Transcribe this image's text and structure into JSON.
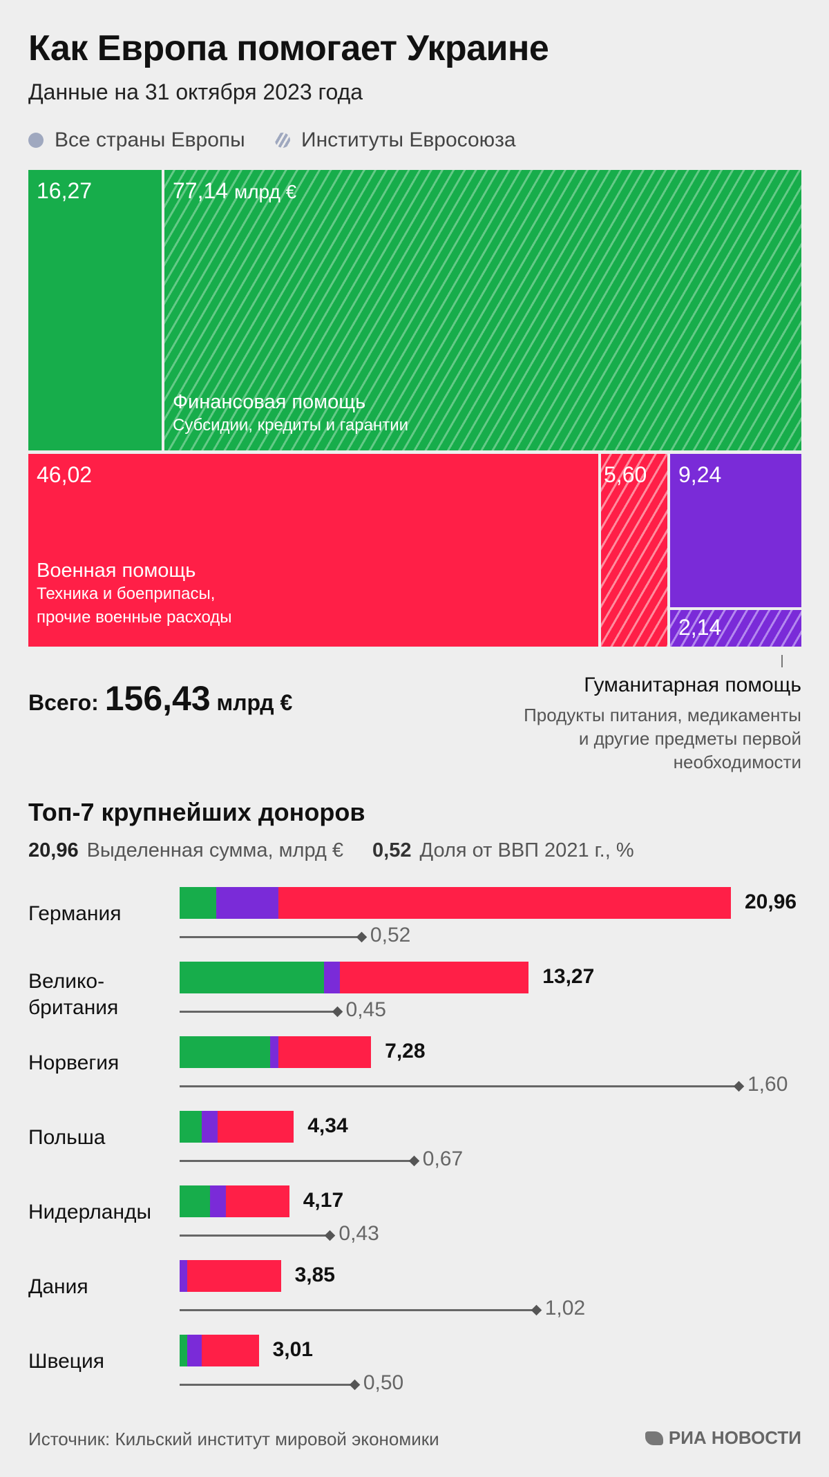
{
  "title": "Как Европа помогает Украине",
  "subtitle": "Данные на 31 октября 2023 года",
  "legend": {
    "countries": "Все страны Европы",
    "eu": "Институты Евросоюза"
  },
  "colors": {
    "financial": "#17ad4b",
    "military": "#ff1f47",
    "humanitarian": "#7a2bd8",
    "background": "#eeeeee"
  },
  "treemap": {
    "financial": {
      "countries": "16,27",
      "eu": "77,14",
      "unit": "млрд €",
      "title": "Финансовая помощь",
      "desc": "Субсидии, кредиты и гарантии"
    },
    "military": {
      "countries": "46,02",
      "eu": "5,60",
      "title": "Военная помощь",
      "desc_line1": "Техника и боеприпасы,",
      "desc_line2": "прочие военные расходы"
    },
    "humanitarian": {
      "countries": "9,24",
      "eu": "2,14",
      "title": "Гуманитарная помощь",
      "desc_line1": "Продукты питания, медикаменты",
      "desc_line2": "и другие предметы первой",
      "desc_line3": "необходимости"
    }
  },
  "total": {
    "label": "Всего:",
    "value": "156,43",
    "unit": "млрд €"
  },
  "top": {
    "title": "Топ-7 крупнейших доноров",
    "key_value_example": "20,96",
    "key_value_label": "Выделенная сумма, млрд €",
    "key_gdp_example": "0,52",
    "key_gdp_label": "Доля от ВВП 2021 г., %"
  },
  "chart_data": {
    "type": "bar",
    "title": "Топ-7 крупнейших доноров",
    "categories": [
      "Германия",
      "Великобритания",
      "Норвегия",
      "Польша",
      "Нидерланды",
      "Дания",
      "Швеция"
    ],
    "series": [
      {
        "name": "Финансовая помощь",
        "values": [
          1.4,
          5.5,
          3.45,
          0.85,
          1.15,
          0.0,
          0.3
        ]
      },
      {
        "name": "Гуманитарная помощь",
        "values": [
          2.35,
          0.6,
          0.3,
          0.6,
          0.6,
          0.3,
          0.55
        ]
      },
      {
        "name": "Военная помощь",
        "values": [
          17.21,
          7.17,
          3.53,
          2.89,
          2.42,
          3.55,
          2.16
        ]
      }
    ],
    "totals": [
      20.96,
      13.27,
      7.28,
      4.34,
      4.17,
      3.85,
      3.01
    ],
    "totals_labels": [
      "20,96",
      "13,27",
      "7,28",
      "4,34",
      "4,17",
      "3,85",
      "3,01"
    ],
    "gdp_share": [
      0.52,
      0.45,
      1.6,
      0.67,
      0.43,
      1.02,
      0.5
    ],
    "gdp_labels": [
      "0,52",
      "0,45",
      "1,60",
      "0,67",
      "0,43",
      "1,02",
      "0,50"
    ],
    "country_labels": [
      "Германия",
      "Велико-\nбритания",
      "Норвегия",
      "Польша",
      "Нидерланды",
      "Дания",
      "Швеция"
    ],
    "xlim": [
      0,
      20.96
    ],
    "gdp_lim": [
      0,
      1.6
    ]
  },
  "source": "Источник: Кильский институт мировой экономики",
  "logo": "РИА НОВОСТИ"
}
